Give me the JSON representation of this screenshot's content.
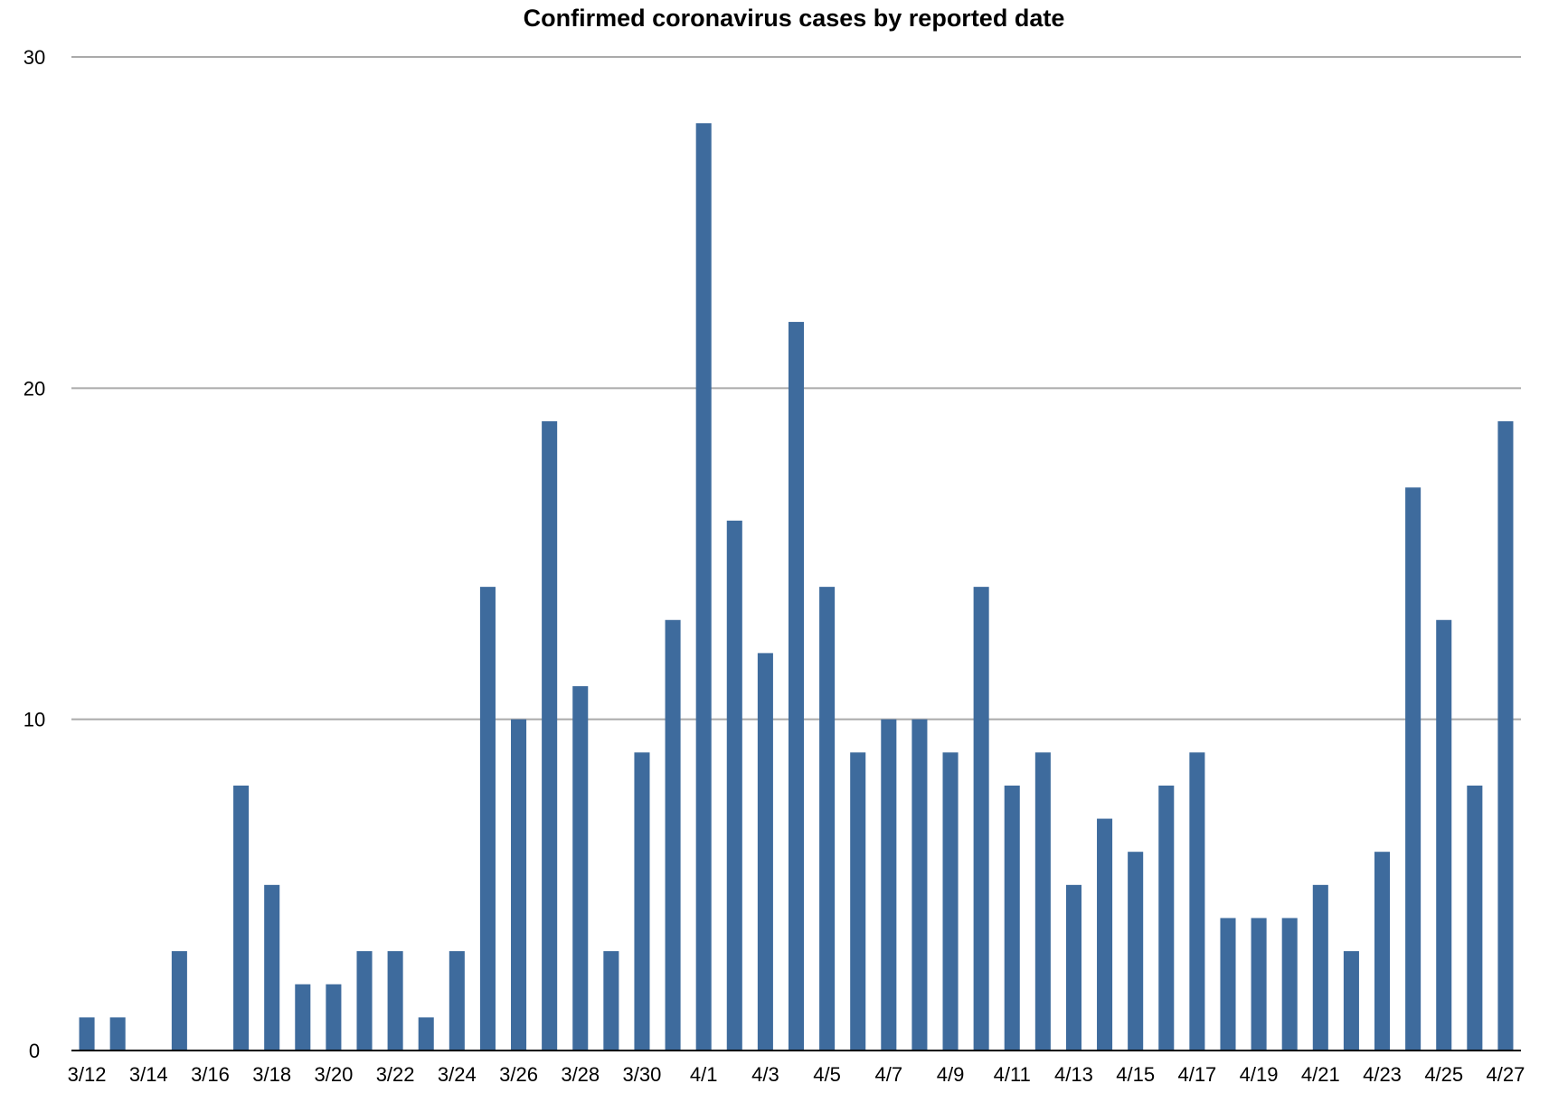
{
  "colors": {
    "bar": "#3e6b9d",
    "gridline": "#aaaaaa",
    "axis": "#000000",
    "text": "#000000",
    "background": "#ffffff"
  },
  "chart_data": {
    "type": "bar",
    "title": "Confirmed coronavirus cases by reported date",
    "xlabel": "",
    "ylabel": "",
    "ylim": [
      0,
      30
    ],
    "yticks": [
      "0",
      "10",
      "20",
      "30"
    ],
    "grid": true,
    "legend": "none",
    "categories": [
      "3/12",
      "3/13",
      "3/14",
      "3/15",
      "3/16",
      "3/17",
      "3/18",
      "3/19",
      "3/20",
      "3/21",
      "3/22",
      "3/23",
      "3/24",
      "3/25",
      "3/26",
      "3/27",
      "3/28",
      "3/29",
      "3/30",
      "3/31",
      "4/1",
      "4/2",
      "4/3",
      "4/4",
      "4/5",
      "4/6",
      "4/7",
      "4/8",
      "4/9",
      "4/10",
      "4/11",
      "4/12",
      "4/13",
      "4/14",
      "4/15",
      "4/16",
      "4/17",
      "4/18",
      "4/19",
      "4/20",
      "4/21",
      "4/22",
      "4/23",
      "4/24",
      "4/25",
      "4/26",
      "4/27"
    ],
    "xtick_labels": [
      "3/12",
      "3/14",
      "3/16",
      "3/18",
      "3/20",
      "3/22",
      "3/24",
      "3/26",
      "3/28",
      "3/30",
      "4/1",
      "4/3",
      "4/5",
      "4/7",
      "4/9",
      "4/11",
      "4/13",
      "4/15",
      "4/17",
      "4/19",
      "4/21",
      "4/23",
      "4/25",
      "4/27"
    ],
    "values": [
      1,
      1,
      0,
      3,
      0,
      8,
      5,
      2,
      2,
      3,
      3,
      1,
      3,
      14,
      10,
      19,
      11,
      3,
      9,
      13,
      28,
      16,
      12,
      22,
      14,
      9,
      10,
      10,
      9,
      14,
      8,
      9,
      5,
      7,
      6,
      8,
      9,
      4,
      4,
      4,
      5,
      3,
      6,
      17,
      13,
      8,
      19
    ]
  }
}
